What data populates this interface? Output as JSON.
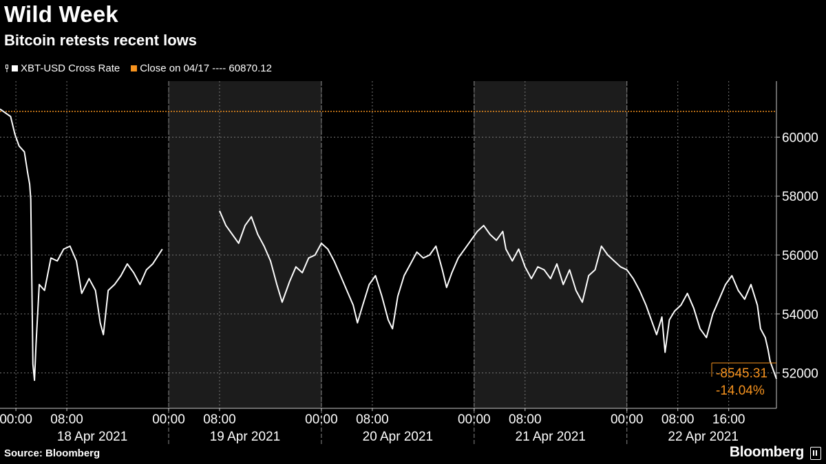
{
  "header": {
    "title": "Wild Week",
    "subtitle": "Bitcoin retests recent lows"
  },
  "legend": {
    "series_label": "XBT-USD Cross Rate",
    "close_label": "Close on 04/17 ---- 60870.12"
  },
  "footer": {
    "source": "Source: Bloomberg",
    "brand": "Bloomberg"
  },
  "colors": {
    "background": "#000000",
    "line": "#ffffff",
    "accent": "#f7931e",
    "shade": "#1c1c1c",
    "grid": "#777777"
  },
  "chart_data": {
    "type": "line",
    "title": "Wild Week",
    "subtitle": "Bitcoin retests recent lows",
    "xlabel": "",
    "ylabel": "",
    "x_range": [
      "2021-04-17T21:30",
      "2021-04-22T23:30"
    ],
    "ylim": [
      50800,
      61900
    ],
    "y_ticks": [
      52000,
      54000,
      56000,
      58000,
      60000
    ],
    "y_tick_labels": [
      "52000",
      "54000",
      "56000",
      "58000",
      "60000"
    ],
    "x_time_ticks": [
      {
        "t": "2021-04-18T00:00",
        "label": "00:00"
      },
      {
        "t": "2021-04-18T08:00",
        "label": "08:00"
      },
      {
        "t": "2021-04-19T00:00",
        "label": "00:00"
      },
      {
        "t": "2021-04-19T08:00",
        "label": "08:00"
      },
      {
        "t": "2021-04-20T00:00",
        "label": "00:00"
      },
      {
        "t": "2021-04-20T08:00",
        "label": "08:00"
      },
      {
        "t": "2021-04-21T00:00",
        "label": "00:00"
      },
      {
        "t": "2021-04-21T08:00",
        "label": "08:00"
      },
      {
        "t": "2021-04-22T00:00",
        "label": "00:00"
      },
      {
        "t": "2021-04-22T08:00",
        "label": "08:00"
      },
      {
        "t": "2021-04-22T16:00",
        "label": "16:00"
      }
    ],
    "date_labels": [
      {
        "t": "2021-04-18T12:00",
        "label": "18 Apr 2021"
      },
      {
        "t": "2021-04-19T12:00",
        "label": "19 Apr 2021"
      },
      {
        "t": "2021-04-20T12:00",
        "label": "20 Apr 2021"
      },
      {
        "t": "2021-04-21T12:00",
        "label": "21 Apr 2021"
      },
      {
        "t": "2021-04-22T12:00",
        "label": "22 Apr 2021"
      }
    ],
    "day_boundaries": [
      "2021-04-19T00:00",
      "2021-04-20T00:00",
      "2021-04-21T00:00",
      "2021-04-22T00:00"
    ],
    "shaded_days": [
      {
        "start": "2021-04-19T00:00",
        "end": "2021-04-20T00:00"
      },
      {
        "start": "2021-04-21T00:00",
        "end": "2021-04-22T00:00"
      }
    ],
    "reference_line": {
      "name": "Close on 04/17",
      "value": 60870.12
    },
    "series": [
      {
        "name": "XBT-USD Cross Rate",
        "segments": [
          [
            [
              "2021-04-17T21:30",
              60950
            ],
            [
              "2021-04-17T22:30",
              60800
            ],
            [
              "2021-04-17T23:10",
              60700
            ],
            [
              "2021-04-17T23:50",
              60100
            ],
            [
              "2021-04-18T00:30",
              59700
            ],
            [
              "2021-04-18T01:20",
              59500
            ],
            [
              "2021-04-18T01:50",
              58800
            ],
            [
              "2021-04-18T02:10",
              58400
            ],
            [
              "2021-04-18T02:20",
              57900
            ],
            [
              "2021-04-18T02:40",
              52300
            ],
            [
              "2021-04-18T02:55",
              51750
            ],
            [
              "2021-04-18T03:10",
              53000
            ],
            [
              "2021-04-18T03:40",
              55000
            ],
            [
              "2021-04-18T04:30",
              54800
            ],
            [
              "2021-04-18T05:30",
              55900
            ],
            [
              "2021-04-18T06:30",
              55800
            ],
            [
              "2021-04-18T07:30",
              56200
            ],
            [
              "2021-04-18T08:30",
              56300
            ],
            [
              "2021-04-18T09:30",
              55800
            ],
            [
              "2021-04-18T10:20",
              54700
            ],
            [
              "2021-04-18T11:30",
              55200
            ],
            [
              "2021-04-18T12:30",
              54800
            ],
            [
              "2021-04-18T13:15",
              53700
            ],
            [
              "2021-04-18T13:45",
              53300
            ],
            [
              "2021-04-18T14:30",
              54800
            ],
            [
              "2021-04-18T15:30",
              55000
            ],
            [
              "2021-04-18T16:30",
              55300
            ],
            [
              "2021-04-18T17:30",
              55700
            ],
            [
              "2021-04-18T18:30",
              55400
            ],
            [
              "2021-04-18T19:30",
              55000
            ],
            [
              "2021-04-18T20:30",
              55500
            ],
            [
              "2021-04-18T21:30",
              55700
            ],
            [
              "2021-04-18T23:00",
              56200
            ]
          ],
          [
            [
              "2021-04-19T08:00",
              57500
            ],
            [
              "2021-04-19T09:00",
              57000
            ],
            [
              "2021-04-19T10:00",
              56700
            ],
            [
              "2021-04-19T11:00",
              56400
            ],
            [
              "2021-04-19T12:00",
              57000
            ],
            [
              "2021-04-19T13:00",
              57300
            ],
            [
              "2021-04-19T14:00",
              56700
            ],
            [
              "2021-04-19T15:00",
              56300
            ],
            [
              "2021-04-19T16:00",
              55800
            ],
            [
              "2021-04-19T17:00",
              55000
            ],
            [
              "2021-04-19T17:50",
              54400
            ],
            [
              "2021-04-19T19:00",
              55100
            ],
            [
              "2021-04-19T20:00",
              55600
            ],
            [
              "2021-04-19T21:00",
              55400
            ],
            [
              "2021-04-19T22:00",
              55900
            ],
            [
              "2021-04-19T23:00",
              56000
            ],
            [
              "2021-04-20T00:00",
              56400
            ],
            [
              "2021-04-20T01:00",
              56200
            ],
            [
              "2021-04-20T02:00",
              55800
            ],
            [
              "2021-04-20T03:00",
              55300
            ],
            [
              "2021-04-20T04:00",
              54800
            ],
            [
              "2021-04-20T05:00",
              54300
            ],
            [
              "2021-04-20T05:40",
              53700
            ],
            [
              "2021-04-20T06:30",
              54300
            ],
            [
              "2021-04-20T07:30",
              55000
            ],
            [
              "2021-04-20T08:30",
              55300
            ],
            [
              "2021-04-20T09:30",
              54600
            ],
            [
              "2021-04-20T10:30",
              53800
            ],
            [
              "2021-04-20T11:10",
              53500
            ],
            [
              "2021-04-20T12:00",
              54600
            ],
            [
              "2021-04-20T13:00",
              55300
            ],
            [
              "2021-04-20T14:00",
              55700
            ],
            [
              "2021-04-20T15:00",
              56100
            ],
            [
              "2021-04-20T16:00",
              55900
            ],
            [
              "2021-04-20T17:00",
              56000
            ],
            [
              "2021-04-20T18:00",
              56300
            ],
            [
              "2021-04-20T19:00",
              55500
            ],
            [
              "2021-04-20T19:40",
              54900
            ],
            [
              "2021-04-20T20:30",
              55400
            ],
            [
              "2021-04-20T21:30",
              55900
            ],
            [
              "2021-04-20T22:30",
              56200
            ],
            [
              "2021-04-20T23:30",
              56500
            ],
            [
              "2021-04-21T00:30",
              56800
            ],
            [
              "2021-04-21T01:30",
              57000
            ],
            [
              "2021-04-21T02:30",
              56700
            ],
            [
              "2021-04-21T03:30",
              56500
            ],
            [
              "2021-04-21T04:30",
              56800
            ],
            [
              "2021-04-21T05:00",
              56200
            ],
            [
              "2021-04-21T06:00",
              55800
            ],
            [
              "2021-04-21T07:00",
              56200
            ],
            [
              "2021-04-21T08:00",
              55600
            ],
            [
              "2021-04-21T09:00",
              55200
            ],
            [
              "2021-04-21T10:00",
              55600
            ],
            [
              "2021-04-21T11:00",
              55500
            ],
            [
              "2021-04-21T12:00",
              55200
            ],
            [
              "2021-04-21T13:00",
              55700
            ],
            [
              "2021-04-21T14:00",
              55000
            ],
            [
              "2021-04-21T15:00",
              55500
            ],
            [
              "2021-04-21T16:00",
              54800
            ],
            [
              "2021-04-21T17:00",
              54400
            ],
            [
              "2021-04-21T18:00",
              55300
            ],
            [
              "2021-04-21T19:00",
              55500
            ],
            [
              "2021-04-21T20:00",
              56300
            ],
            [
              "2021-04-21T21:00",
              56000
            ],
            [
              "2021-04-21T22:00",
              55800
            ],
            [
              "2021-04-21T23:00",
              55600
            ],
            [
              "2021-04-22T00:00",
              55500
            ],
            [
              "2021-04-22T01:00",
              55200
            ],
            [
              "2021-04-22T02:00",
              54800
            ],
            [
              "2021-04-22T03:00",
              54300
            ],
            [
              "2021-04-22T04:00",
              53700
            ],
            [
              "2021-04-22T04:40",
              53300
            ],
            [
              "2021-04-22T05:30",
              53900
            ],
            [
              "2021-04-22T06:00",
              52700
            ],
            [
              "2021-04-22T06:40",
              53800
            ],
            [
              "2021-04-22T07:30",
              54100
            ],
            [
              "2021-04-22T08:30",
              54300
            ],
            [
              "2021-04-22T09:30",
              54700
            ],
            [
              "2021-04-22T10:30",
              54200
            ],
            [
              "2021-04-22T11:30",
              53500
            ],
            [
              "2021-04-22T12:30",
              53200
            ],
            [
              "2021-04-22T13:30",
              54000
            ],
            [
              "2021-04-22T14:30",
              54500
            ],
            [
              "2021-04-22T15:30",
              55000
            ],
            [
              "2021-04-22T16:30",
              55300
            ],
            [
              "2021-04-22T17:30",
              54800
            ],
            [
              "2021-04-22T18:30",
              54500
            ],
            [
              "2021-04-22T19:30",
              55000
            ],
            [
              "2021-04-22T20:30",
              54300
            ],
            [
              "2021-04-22T21:00",
              53500
            ],
            [
              "2021-04-22T21:45",
              53200
            ],
            [
              "2021-04-22T22:10",
              52800
            ],
            [
              "2021-04-22T22:30",
              52400
            ],
            [
              "2021-04-22T23:00",
              52100
            ],
            [
              "2021-04-22T23:30",
              51800
            ]
          ]
        ]
      }
    ],
    "annotations": [
      {
        "text": "-8545.31",
        "ref_value": 52325
      },
      {
        "text": "-14.04%"
      }
    ]
  }
}
